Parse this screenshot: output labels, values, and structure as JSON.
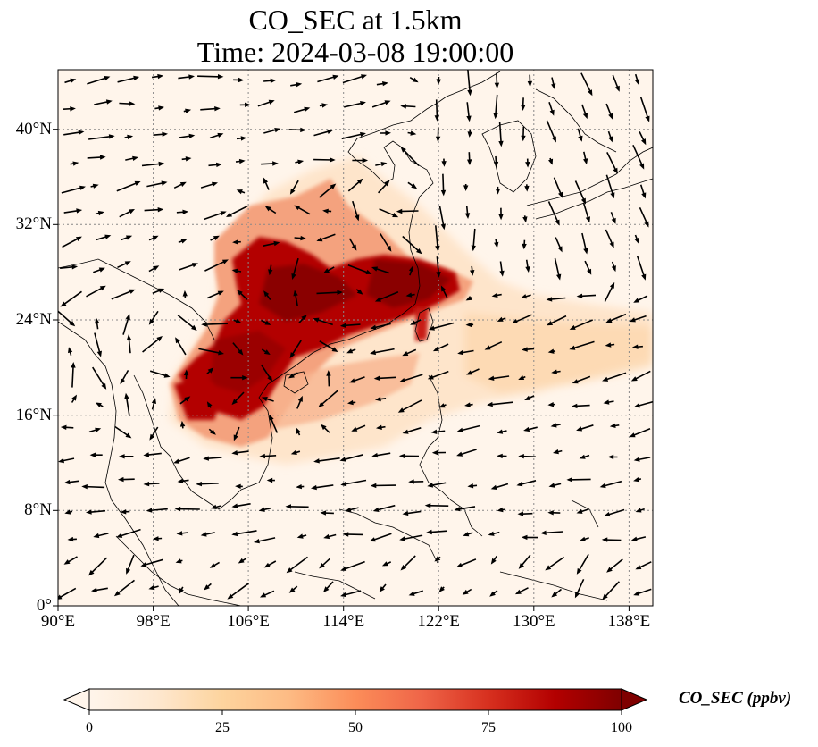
{
  "title": {
    "line1": "CO_SEC at 1.5km",
    "line2": "Time: 2024-03-08 19:00:00"
  },
  "map": {
    "lon_range": [
      90,
      140
    ],
    "lat_range": [
      0,
      45
    ],
    "lon_ticks": [
      "90°E",
      "98°E",
      "106°E",
      "114°E",
      "122°E",
      "130°E",
      "138°E"
    ],
    "lat_ticks": [
      "0°",
      "8°N",
      "16°N",
      "24°N",
      "32°N",
      "40°N"
    ],
    "gridlines": true,
    "field": "CO_SEC",
    "vectors": "wind"
  },
  "colorbar": {
    "label": "CO_SEC (ppbv)",
    "ticks": [
      "0",
      "25",
      "50",
      "75",
      "100"
    ],
    "range": [
      0,
      100
    ],
    "colormap": [
      "#fff5eb",
      "#fee6ce",
      "#fdd0a2",
      "#fdae6b",
      "#fd8d3c",
      "#f16913",
      "#d94801",
      "#a63603",
      "#7f2704"
    ],
    "extend": "both"
  }
}
